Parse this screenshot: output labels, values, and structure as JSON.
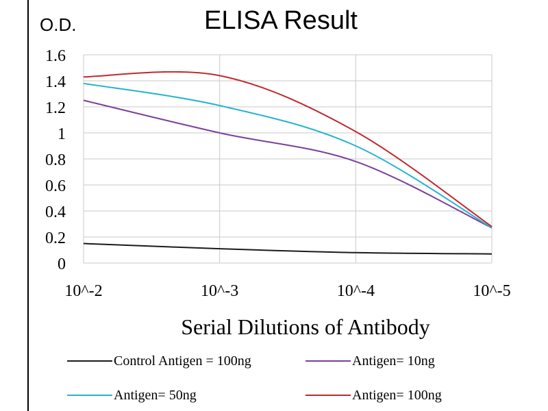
{
  "chart_data": {
    "type": "line",
    "title": "ELISA Result",
    "ylabel": "O.D.",
    "xlabel": "Serial Dilutions  of Antibody",
    "categories": [
      "10^-2",
      "10^-3",
      "10^-4",
      "10^-5"
    ],
    "ylim": [
      0,
      1.6
    ],
    "yticks": [
      "0",
      "0.2",
      "0.4",
      "0.6",
      "0.8",
      "1",
      "1.2",
      "1.4",
      "1.6"
    ],
    "grid": true,
    "legend_position": "bottom",
    "series": [
      {
        "name": "Control Antigen = 100ng",
        "color": "#1a1a1a",
        "values": [
          0.15,
          0.11,
          0.08,
          0.07
        ]
      },
      {
        "name": "Antigen= 10ng",
        "color": "#7a3f9b",
        "values": [
          1.25,
          1.0,
          0.78,
          0.27
        ]
      },
      {
        "name": "Antigen= 50ng",
        "color": "#25b4cf",
        "values": [
          1.38,
          1.21,
          0.9,
          0.27
        ]
      },
      {
        "name": "Antigen= 100ng",
        "color": "#c0282c",
        "values": [
          1.43,
          1.44,
          1.01,
          0.28
        ]
      }
    ]
  }
}
